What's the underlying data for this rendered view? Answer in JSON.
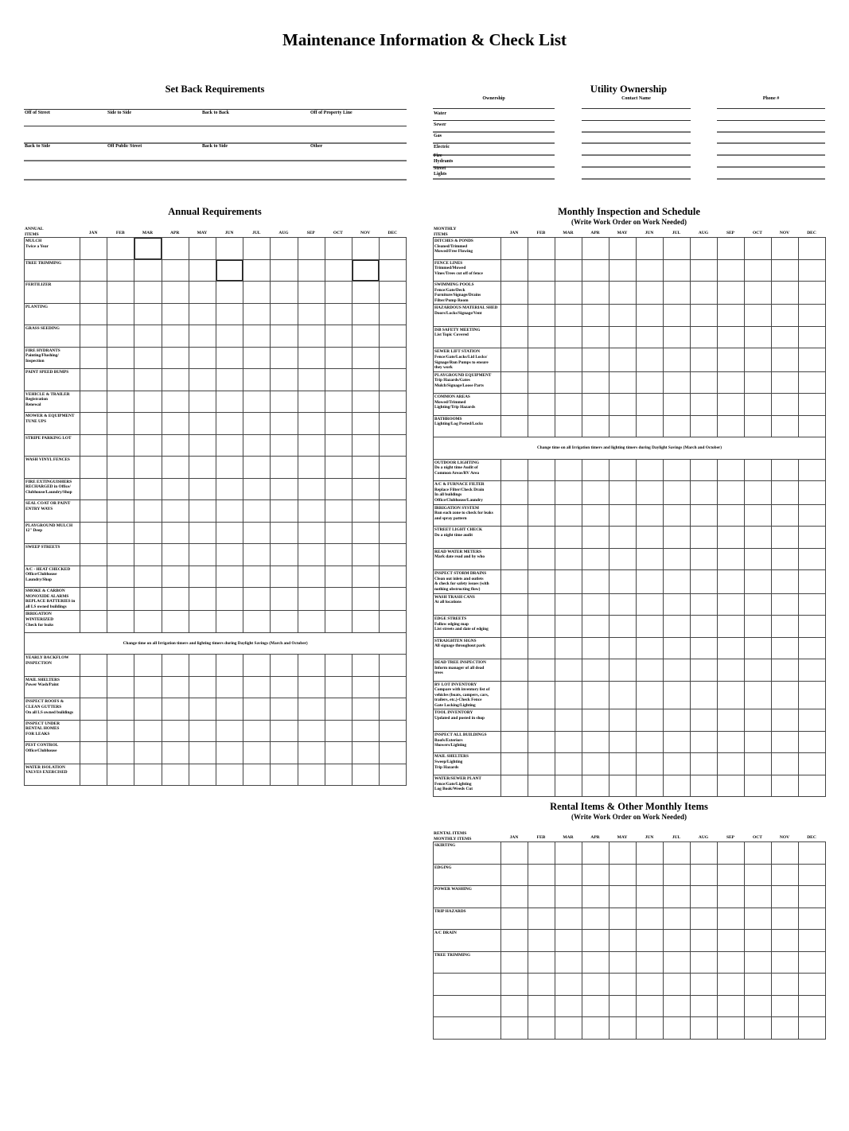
{
  "title": "Maintenance Information & Check List",
  "setback": {
    "heading": "Set Back Requirements",
    "row1": [
      "Off of Street",
      "Side to Side",
      "Back to Back",
      "Off of Property Line"
    ],
    "row2": [
      "Back to Side",
      "Off Public Street",
      "Back to Side",
      "Other"
    ]
  },
  "utility": {
    "heading": "Utility Ownership",
    "columns": [
      "Ownership",
      "Contact Name",
      "Phone #"
    ],
    "rows": [
      "Water",
      "Sewer",
      "Gas",
      "Electric",
      "Fire\nHydrants",
      "Street\nLights"
    ]
  },
  "months": [
    "JAN",
    "FEB",
    "MAR",
    "APR",
    "MAY",
    "JUN",
    "JUL",
    "AUG",
    "SEP",
    "OCT",
    "NOV",
    "DEC"
  ],
  "annual": {
    "heading": "Annual Requirements",
    "items_header": "ANNUAL\nITEMS",
    "items_a": [
      "MULCH\nTwice a Year",
      "TREE TRIMMING",
      "FERTILIZER",
      "PLANTING",
      "GRASS SEEDING",
      "FIRE HYDRANTS\nPainting/Flushing/\nInspection",
      "PAINT SPEED BUMPS",
      "VEHICLE & TRAILER\nRegistration\nRenewal",
      "MOWER & EQUIPMENT\nTUNE UPS",
      "STRIPE PARKING LOT",
      "WASH VINYL FENCES",
      "FIRE EXTINGUISHERS\nRECHARGED in Office/\nClubhouse/Laundry/Shop",
      "SEAL COAT OR PAINT\nENTRY WAYS",
      "PLAYGROUND MULCH\n12\" Deep",
      "SWEEP STREETS",
      "A/C - HEAT CHECKED\nOffice/Clubhouse\nLaundry/Shop",
      "SMOKE & CARBON\nMONOXIDE ALARMS\nREPLACE BATTERIES in\nall LS owned buildings",
      "IRRIGATION\nWINTERIZED\nCheck for leaks"
    ],
    "note": "Change time on all Irrigation timers and lighting timers during Daylight Savings (March and October)",
    "items_b": [
      "YEARLY BACKFLOW\nINSPECTION",
      "MAIL SHELTERS\nPower Wash/Paint",
      "INSPECT ROOFS &\nCLEAN GUTTERS\nOn all LS owned buildings",
      "INSPECT UNDER\nRENTAL HOMES\nFOR LEAKS",
      "PEST CONTROL\nOffice/Clubhouse",
      "WATER ISOLATION\nVALVES EXERCISED"
    ]
  },
  "monthly": {
    "heading": "Monthly Inspection and Schedule",
    "subheading": "(Write Work Order on Work Needed)",
    "items_header": "MONTHLY\nITEMS",
    "items_a": [
      "DITCHES & PONDS\nCleaned/Trimmed\nMowed/Free Flowing",
      "FENCE LINES\nTrimmed/Mowed\nVines/Trees cut off of fence",
      "SWIMMING POOLS\nFence/Gate/Deck\nFurniture/Signage/Drains\nFilter/Pump Room",
      "HAZARDOUS MATERIAL SHED\nDoors/Locks/Signage/Vent",
      "ISB SAFETY MEETING\nList Topic Covered",
      "SEWER LIFT STATION\nFence/Gate/Locks/Lid Locks/\nSignage/Run Pumps to ensure\nthey work",
      "PLAYGROUND EQUIPMENT\nTrip Hazards/Gates\nMulch/Signage/Loose Parts",
      "COMMON AREAS\nMowed/Trimmed\nLighting/Trip Hazards",
      "BATHROOMS\nLighting/Log Posted/Locks"
    ],
    "note": "Change time on all Irrigation timers and lighting timers during Daylight Savings (March and October)",
    "items_b": [
      "OUTDOOR LIGHTING\nDo a night time Audit of\nCommon Areas/RV Area",
      "A/C & FURNACE FILTER\nReplace Filter/Check Drain\nIn all buildings\nOffice/Clubhouse/Laundry",
      "IRRIGATION SYSTEM\nRun each zone to check for leaks\nand spray pattern",
      "STREET LIGHT CHECK\nDo a night time audit",
      "READ WATER METERS\nMark date read and by who",
      "INSPECT STORM DRAINS\nClean out inlets and outlets\n& check for safety issues (with\nnothing obstructing flow)",
      "WASH TRASH CANS\nAt all locations",
      "EDGE STREETS\nFollow edging map\nList streets and date of edging",
      "STRAIGHTEN SIGNS\nAll signage throughout park",
      "DEAD TREE INSPECTION\nInform manager of all dead\ntrees",
      "RV LOT INVENTORY\nCompare with inventory list of\nvehicles (boats, campers, cars,\ntrailers, etc.)-Check Fence\nGate Locking/Lighting",
      "TOOL INVENTORY\nUpdated and posted in shop",
      "INSPECT ALL BUILDINGS\nRoofs/Exteriors\nShowers/Lighting",
      "MAIL SHELTERS\nSweep/Lighting\nTrip Hazards",
      "WATER/SEWER PLANT\nFence/Gate/Lighting\nLog Book/Weeds Cut"
    ]
  },
  "rental": {
    "heading": "Rental Items & Other Monthly Items",
    "subheading": "(Write Work Order on Work Needed)",
    "items_header": "RENTAL ITEMS\nMONTHLY ITEMS",
    "items": [
      "SKIRTING",
      "EDGING",
      "POWER WASHING",
      "TRIP HAZARDS",
      "A/C DRAIN",
      "TREE TRIMMING",
      "",
      "",
      ""
    ]
  }
}
